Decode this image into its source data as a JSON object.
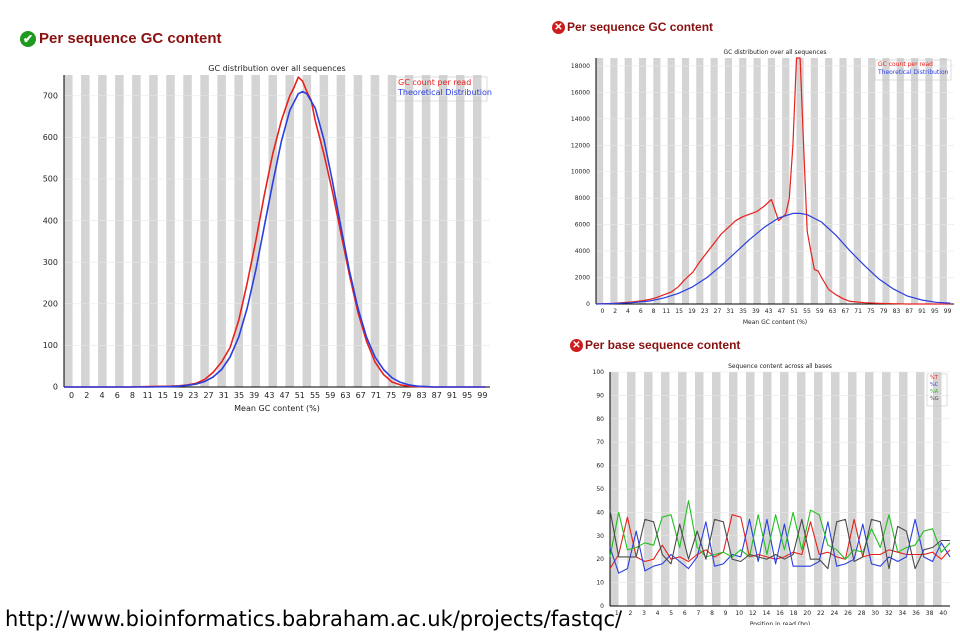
{
  "panels": {
    "left": {
      "heading": "Per sequence GC content",
      "status": "pass",
      "icon": "check-icon"
    },
    "top_right": {
      "heading": "Per sequence GC content",
      "status": "fail",
      "icon": "cross-icon"
    },
    "bottom_right": {
      "heading": "Per base sequence content",
      "status": "fail",
      "icon": "cross-icon"
    }
  },
  "url": "http://www.bioinformatics.babraham.ac.uk/projects/fastqc/",
  "colors": {
    "red": "#e8211c",
    "blue": "#2a3fe0",
    "green": "#21c020",
    "gray": "#4a4a4a",
    "title": "#8b1010"
  },
  "chart_data": [
    {
      "id": "gc_good",
      "type": "line",
      "title": "GC distribution over all sequences",
      "xlabel": "Mean GC content (%)",
      "ylabel": "",
      "xlim": [
        0,
        100
      ],
      "ylim": [
        0,
        750
      ],
      "yticks": [
        0,
        100,
        200,
        300,
        400,
        500,
        600,
        700
      ],
      "xtick_labels": [
        "0",
        "2",
        "4",
        "6",
        "8",
        "11",
        "15",
        "19",
        "23",
        "27",
        "31",
        "35",
        "39",
        "43",
        "47",
        "51",
        "55",
        "59",
        "63",
        "67",
        "71",
        "75",
        "79",
        "83",
        "87",
        "91",
        "95",
        "99"
      ],
      "grid": "vertical bands",
      "legend": "top-right",
      "series": [
        {
          "name": "GC count per read",
          "color": "#e8211c",
          "x": [
            0,
            5,
            10,
            15,
            20,
            25,
            27,
            29,
            31,
            33,
            35,
            37,
            39,
            41,
            43,
            45,
            47,
            49,
            51,
            53,
            54,
            55,
            56,
            57,
            58,
            59,
            61,
            63,
            65,
            67,
            69,
            71,
            73,
            75,
            77,
            79,
            81,
            83,
            85,
            87,
            90,
            95,
            99
          ],
          "y": [
            0,
            0,
            0,
            0,
            1,
            2,
            3,
            5,
            9,
            18,
            35,
            60,
            95,
            160,
            250,
            350,
            460,
            560,
            640,
            700,
            720,
            745,
            735,
            710,
            690,
            640,
            560,
            470,
            370,
            270,
            180,
            110,
            60,
            30,
            12,
            5,
            2,
            1,
            0,
            0,
            0,
            0,
            0
          ]
        },
        {
          "name": "Theoretical Distribution",
          "color": "#2a3fe0",
          "x": [
            0,
            10,
            20,
            25,
            27,
            29,
            31,
            33,
            35,
            37,
            39,
            41,
            43,
            45,
            47,
            49,
            51,
            53,
            55,
            56,
            57,
            59,
            61,
            63,
            65,
            67,
            69,
            71,
            73,
            75,
            77,
            79,
            81,
            83,
            85,
            87,
            90,
            95,
            99
          ],
          "y": [
            0,
            0,
            0,
            1,
            2,
            4,
            7,
            13,
            24,
            42,
            72,
            120,
            190,
            280,
            385,
            490,
            590,
            665,
            705,
            710,
            705,
            670,
            595,
            495,
            385,
            280,
            190,
            120,
            72,
            42,
            22,
            11,
            5,
            2,
            1,
            0,
            0,
            0,
            0
          ]
        }
      ]
    },
    {
      "id": "gc_bad",
      "type": "line",
      "title": "GC distribution over all sequences",
      "xlabel": "Mean GC content (%)",
      "ylabel": "",
      "xlim": [
        0,
        100
      ],
      "ylim": [
        0,
        18600
      ],
      "yticks": [
        0,
        2000,
        4000,
        6000,
        8000,
        10000,
        12000,
        14000,
        16000,
        18000
      ],
      "xtick_labels": [
        "0",
        "2",
        "4",
        "6",
        "8",
        "11",
        "15",
        "19",
        "23",
        "27",
        "31",
        "35",
        "39",
        "43",
        "47",
        "51",
        "55",
        "59",
        "63",
        "67",
        "71",
        "75",
        "79",
        "83",
        "87",
        "91",
        "95",
        "99"
      ],
      "grid": "vertical bands",
      "legend": "top-right",
      "series": [
        {
          "name": "GC count per read",
          "color": "#e8211c",
          "x": [
            0,
            5,
            10,
            13,
            15,
            17,
            19,
            21,
            23,
            25,
            27,
            29,
            31,
            33,
            35,
            37,
            39,
            41,
            43,
            45,
            47,
            49,
            51,
            53,
            54,
            55,
            56,
            57,
            58,
            59,
            60,
            61,
            62,
            63,
            65,
            67,
            69,
            71,
            75,
            79,
            83,
            87,
            91,
            95,
            99
          ],
          "y": [
            0,
            50,
            150,
            250,
            350,
            500,
            700,
            900,
            1300,
            1900,
            2400,
            3200,
            3900,
            4600,
            5300,
            5800,
            6300,
            6600,
            6800,
            7000,
            7400,
            7900,
            6300,
            6800,
            8000,
            12000,
            18600,
            18600,
            12000,
            5500,
            4000,
            2600,
            2500,
            2000,
            1100,
            700,
            400,
            200,
            100,
            50,
            20,
            0,
            0,
            0,
            0
          ]
        },
        {
          "name": "Theoretical Distribution",
          "color": "#2a3fe0",
          "x": [
            0,
            5,
            10,
            15,
            19,
            23,
            27,
            31,
            35,
            39,
            43,
            47,
            51,
            55,
            57,
            59,
            63,
            67,
            71,
            75,
            79,
            83,
            87,
            91,
            95,
            99
          ],
          "y": [
            0,
            40,
            100,
            230,
            460,
            800,
            1300,
            2000,
            2900,
            3900,
            4900,
            5800,
            6500,
            6850,
            6850,
            6750,
            6200,
            5200,
            4000,
            2900,
            1900,
            1150,
            600,
            300,
            130,
            70
          ]
        }
      ]
    },
    {
      "id": "base_content",
      "type": "line",
      "title": "Sequence content across all bases",
      "xlabel": "Position in read (bp)",
      "ylabel": "",
      "xlim": [
        1,
        40
      ],
      "ylim": [
        0,
        100
      ],
      "yticks": [
        0,
        10,
        20,
        30,
        40,
        50,
        60,
        70,
        80,
        90,
        100
      ],
      "xtick_labels": [
        "1",
        "2",
        "3",
        "4",
        "5",
        "6",
        "7",
        "8",
        "9",
        "10",
        "12",
        "14",
        "16",
        "18",
        "20",
        "22",
        "24",
        "26",
        "28",
        "30",
        "32",
        "34",
        "36",
        "38",
        "40"
      ],
      "grid": "vertical bands",
      "legend": "top-right",
      "series": [
        {
          "name": "%T",
          "color": "#e8211c",
          "y": [
            16,
            22,
            38,
            21,
            19,
            20,
            26,
            20,
            21,
            19,
            22,
            24,
            21,
            23,
            39,
            38,
            21,
            22,
            21,
            20,
            21,
            23,
            22,
            36,
            22,
            23,
            21,
            20,
            37,
            21,
            22,
            22,
            24,
            23,
            22,
            22,
            22,
            23,
            20,
            24
          ]
        },
        {
          "name": "%C",
          "color": "#2a3fe0",
          "y": [
            25,
            14,
            16,
            32,
            15,
            17,
            18,
            22,
            19,
            16,
            21,
            36,
            17,
            18,
            22,
            21,
            37,
            19,
            37,
            18,
            35,
            17,
            17,
            17,
            19,
            36,
            17,
            18,
            20,
            35,
            18,
            17,
            21,
            19,
            21,
            37,
            21,
            19,
            27,
            21
          ]
        },
        {
          "name": "%A",
          "color": "#21c020",
          "y": [
            21,
            40,
            24,
            25,
            27,
            26,
            38,
            39,
            25,
            45,
            25,
            21,
            22,
            23,
            21,
            24,
            21,
            39,
            22,
            39,
            24,
            40,
            24,
            41,
            39,
            26,
            24,
            20,
            24,
            23,
            33,
            25,
            39,
            23,
            25,
            26,
            32,
            33,
            23,
            27
          ]
        },
        {
          "name": "%G",
          "color": "#4a4a4a",
          "y": [
            41,
            21,
            21,
            21,
            37,
            36,
            22,
            18,
            35,
            20,
            32,
            20,
            37,
            36,
            20,
            19,
            22,
            21,
            20,
            22,
            20,
            22,
            37,
            20,
            20,
            16,
            36,
            37,
            19,
            21,
            37,
            36,
            16,
            34,
            32,
            16,
            24,
            25,
            28,
            28
          ]
        }
      ]
    }
  ]
}
